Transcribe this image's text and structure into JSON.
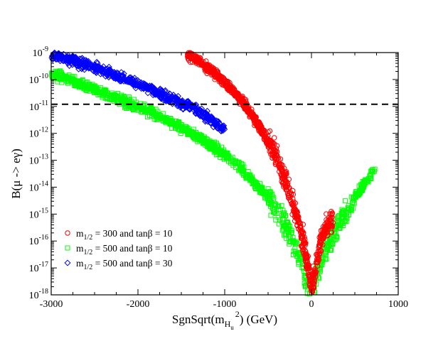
{
  "chart_data": {
    "type": "scatter",
    "title": "",
    "xlabel": "SgnSqrt(m",
    "xlabel_sub": "H",
    "xlabel_subsub": "u",
    "xlabel_sup": "2",
    "xlabel_suffix": ") (GeV)",
    "ylabel": "B(μ -> eγ)",
    "xlim": [
      -3000,
      1000
    ],
    "ylim_log10": [
      -18,
      -9
    ],
    "yscale": "log",
    "x_ticks": [
      {
        "value": -3000,
        "label": "-3000"
      },
      {
        "value": -2000,
        "label": "-2000"
      },
      {
        "value": -1000,
        "label": "-1000"
      },
      {
        "value": 0,
        "label": "0"
      },
      {
        "value": 1000,
        "label": "1000"
      }
    ],
    "y_ticks": [
      {
        "exp": -9,
        "base": "10",
        "sup": "-9"
      },
      {
        "exp": -10,
        "base": "10",
        "sup": "-10"
      },
      {
        "exp": -11,
        "base": "10",
        "sup": "-11"
      },
      {
        "exp": -12,
        "base": "10",
        "sup": "-12"
      },
      {
        "exp": -13,
        "base": "10",
        "sup": "-13"
      },
      {
        "exp": -14,
        "base": "10",
        "sup": "-14"
      },
      {
        "exp": -15,
        "base": "10",
        "sup": "-15"
      },
      {
        "exp": -16,
        "base": "10",
        "sup": "-16"
      },
      {
        "exp": -17,
        "base": "10",
        "sup": "-17"
      },
      {
        "exp": -18,
        "base": "10",
        "sup": "-18"
      }
    ],
    "reference_line": {
      "value": 1.2e-11,
      "style": "dashed",
      "color": "#000000"
    },
    "legend_position": "bottom-left",
    "series": [
      {
        "name": "m1/2 = 300 and tanβ = 10",
        "legend": {
          "m": "m",
          "sub": "1/2",
          "eq": " = 300  and  tanβ = 10"
        },
        "marker": "circle",
        "color": "#ff0000",
        "curve_log10": [
          [
            -1430,
            -9.05
          ],
          [
            -1300,
            -9.3
          ],
          [
            -1200,
            -9.55
          ],
          [
            -1100,
            -9.8
          ],
          [
            -1000,
            -10.1
          ],
          [
            -900,
            -10.45
          ],
          [
            -800,
            -10.8
          ],
          [
            -700,
            -11.25
          ],
          [
            -600,
            -11.75
          ],
          [
            -500,
            -12.3
          ],
          [
            -400,
            -12.95
          ],
          [
            -300,
            -13.75
          ],
          [
            -220,
            -14.55
          ],
          [
            -150,
            -15.3
          ],
          [
            -100,
            -15.95
          ],
          [
            -60,
            -16.6
          ],
          [
            -30,
            -17.2
          ],
          [
            0,
            -17.7
          ],
          [
            30,
            -17.4
          ],
          [
            60,
            -16.8
          ],
          [
            100,
            -16.1
          ],
          [
            150,
            -15.6
          ],
          [
            200,
            -15.3
          ],
          [
            250,
            -15.2
          ]
        ],
        "point_count": 1000
      },
      {
        "name": "m1/2 = 500 and tanβ = 10",
        "legend": {
          "m": "m",
          "sub": "1/2",
          "eq": " = 500  and  tanβ = 10"
        },
        "marker": "square",
        "color": "#00ff00",
        "curve_log10": [
          [
            -3000,
            -9.8
          ],
          [
            -2800,
            -10.0
          ],
          [
            -2600,
            -10.25
          ],
          [
            -2400,
            -10.5
          ],
          [
            -2200,
            -10.75
          ],
          [
            -2000,
            -11.0
          ],
          [
            -1800,
            -11.3
          ],
          [
            -1600,
            -11.6
          ],
          [
            -1400,
            -11.95
          ],
          [
            -1200,
            -12.35
          ],
          [
            -1000,
            -12.8
          ],
          [
            -800,
            -13.35
          ],
          [
            -600,
            -14.0
          ],
          [
            -450,
            -14.6
          ],
          [
            -300,
            -15.4
          ],
          [
            -200,
            -16.1
          ],
          [
            -100,
            -16.9
          ],
          [
            -50,
            -17.6
          ],
          [
            0,
            -18.0
          ],
          [
            50,
            -17.4
          ],
          [
            100,
            -16.8
          ],
          [
            200,
            -16.1
          ],
          [
            300,
            -15.5
          ],
          [
            400,
            -14.9
          ],
          [
            500,
            -14.4
          ],
          [
            600,
            -13.9
          ],
          [
            700,
            -13.5
          ],
          [
            740,
            -13.4
          ]
        ],
        "point_count": 1200
      },
      {
        "name": "m1/2 = 500 and tanβ = 30",
        "legend": {
          "m": "m",
          "sub": "1/2",
          "eq": " = 500  and  tanβ = 30"
        },
        "marker": "diamond",
        "color": "#0000ff",
        "curve_log10": [
          [
            -3000,
            -9.1
          ],
          [
            -2800,
            -9.25
          ],
          [
            -2600,
            -9.45
          ],
          [
            -2400,
            -9.65
          ],
          [
            -2200,
            -9.9
          ],
          [
            -2000,
            -10.15
          ],
          [
            -1800,
            -10.45
          ],
          [
            -1600,
            -10.75
          ],
          [
            -1400,
            -11.0
          ],
          [
            -1200,
            -11.4
          ],
          [
            -1000,
            -11.85
          ]
        ],
        "point_count": 700
      }
    ]
  }
}
